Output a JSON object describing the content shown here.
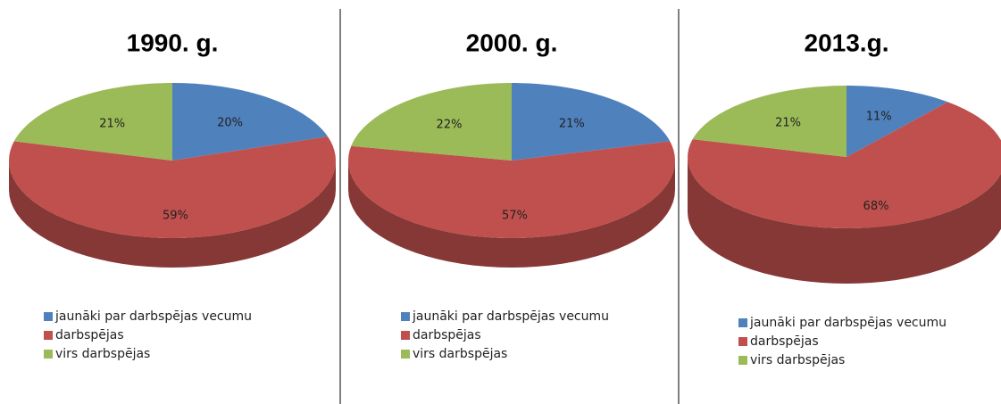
{
  "chart_data": [
    {
      "type": "pie",
      "title": "1990. g.",
      "categories": [
        "jaunāki par darbspējas vecumu",
        "darbspējas",
        "virs darbspējas"
      ],
      "values": [
        20,
        59,
        21
      ],
      "value_labels": [
        "20%",
        "59%",
        "21%"
      ],
      "colors": [
        "#4f81bd",
        "#c0504d",
        "#9bbb59"
      ]
    },
    {
      "type": "pie",
      "title": "2000. g.",
      "categories": [
        "jaunāki par darbspējas vecumu",
        "darbspējas",
        "virs darbspējas"
      ],
      "values": [
        21,
        57,
        22
      ],
      "value_labels": [
        "21%",
        "57%",
        "22%"
      ],
      "colors": [
        "#4f81bd",
        "#c0504d",
        "#9bbb59"
      ]
    },
    {
      "type": "pie",
      "title": "2013.g.",
      "categories": [
        "jaunāki par darbspējas vecumu",
        "darbspējas",
        "virs darbspējas"
      ],
      "values": [
        11,
        68,
        21
      ],
      "value_labels": [
        "11%",
        "68%",
        "21%"
      ],
      "colors": [
        "#4f81bd",
        "#c0504d",
        "#9bbb59"
      ]
    }
  ]
}
